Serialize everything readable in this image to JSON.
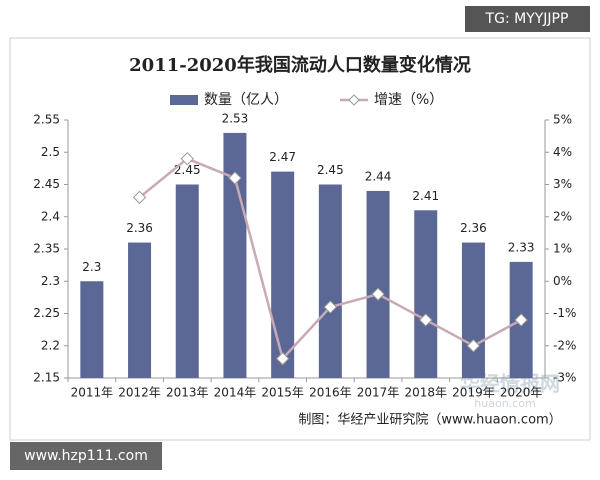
{
  "chart_data": {
    "type": "bar_line",
    "title": "2011-2020年我国流动人口数量变化情况",
    "categories": [
      "2011年",
      "2012年",
      "2013年",
      "2014年",
      "2015年",
      "2016年",
      "2017年",
      "2018年",
      "2019年",
      "2020年"
    ],
    "series": [
      {
        "name": "数量（亿人）",
        "type": "bar",
        "color": "#5b6795",
        "values": [
          2.3,
          2.36,
          2.45,
          2.53,
          2.47,
          2.45,
          2.44,
          2.41,
          2.36,
          2.33
        ]
      },
      {
        "name": "增速（%）",
        "type": "line",
        "axis": "y2",
        "color": "#c8aab4",
        "values": [
          null,
          2.6,
          3.8,
          3.2,
          -2.4,
          -0.8,
          -0.4,
          -1.2,
          -2.0,
          -1.2
        ]
      }
    ],
    "ylim": [
      2.15,
      2.55
    ],
    "yticks": [
      2.15,
      2.2,
      2.25,
      2.3,
      2.35,
      2.4,
      2.45,
      2.5,
      2.55
    ],
    "y2lim": [
      -3,
      5
    ],
    "y2ticks": [
      {
        "value": -3,
        "label": "-3%"
      },
      {
        "value": -2,
        "label": "-2%"
      },
      {
        "value": -1,
        "label": "-1%"
      },
      {
        "value": 0,
        "label": "0%"
      },
      {
        "value": 1,
        "label": "1%"
      },
      {
        "value": 2,
        "label": "2%"
      },
      {
        "value": 3,
        "label": "3%"
      },
      {
        "value": 4,
        "label": "4%"
      },
      {
        "value": 5,
        "label": "5%"
      }
    ],
    "source": "制图：华经产业研究院（www.huaon.com）",
    "watermarks": [
      "TG: MYYJJPP",
      "www.hzp111.com",
      "华经情报网",
      "huaon.com"
    ]
  }
}
